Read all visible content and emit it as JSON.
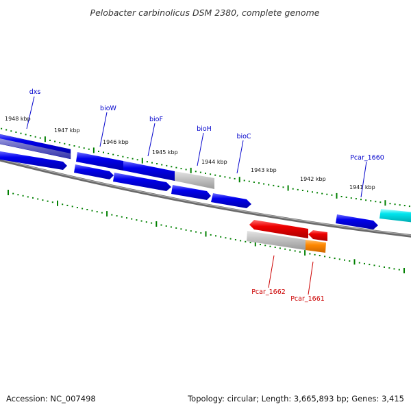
{
  "title": "Pelobacter carbinolicus DSM 2380, complete genome",
  "footer": {
    "accession": "Accession: NC_007498",
    "summary": "Topology: circular; Length: 3,665,893 bp; Genes: 3,415"
  },
  "scale_labels": [
    "1948 kbp",
    "1947 kbp",
    "1946 kbp",
    "1945 kbp",
    "1944 kbp",
    "1943 kbp",
    "1942 kbp",
    "1941 kbp"
  ],
  "gene_labels": {
    "dxs": "dxs",
    "bioW": "bioW",
    "bioF": "bioF",
    "bioH": "bioH",
    "bioC": "bioC",
    "pcar1660": "Pcar_1660",
    "pcar1662": "Pcar_1662",
    "pcar1661": "Pcar_1661"
  },
  "colors": {
    "forward_gene": "#0000ee",
    "reverse_gene": "#ee0000",
    "highlight_gene": "#00e5ee",
    "reverse_alt_gene": "#ff8800",
    "backbone": "#808080",
    "tick": "#008000",
    "forward_label": "#0000cc",
    "reverse_label": "#cc0000"
  }
}
